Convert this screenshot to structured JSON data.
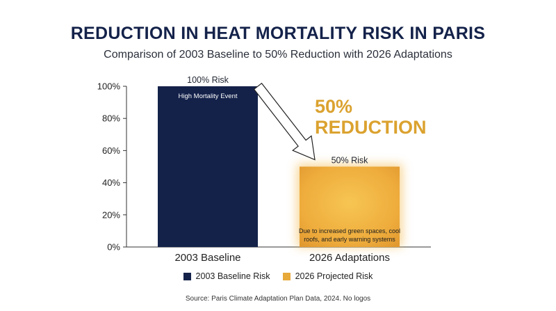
{
  "title": "REDUCTION IN HEAT MORTALITY RISK IN PARIS",
  "subtitle": "Comparison of 2003 Baseline to 50% Reduction with 2026 Adaptations",
  "chart_data": {
    "type": "bar",
    "categories": [
      "2003 Baseline",
      "2026 Adaptations"
    ],
    "values": [
      100,
      50
    ],
    "value_labels": [
      "100% Risk",
      "50% Risk"
    ],
    "bar_notes": [
      "High Mortality Event",
      "Due to increased green spaces, cool roofs, and early warning systems"
    ],
    "bar_notes_lines": [
      [
        "High Mortality Event"
      ],
      [
        "Due to increased green spaces, cool",
        "roofs, and early warning systems"
      ]
    ],
    "yticks": [
      "0%",
      "20%",
      "40%",
      "60%",
      "80%",
      "100%"
    ],
    "ylim": [
      0,
      100
    ],
    "annotation": [
      "50%",
      "REDUCTION"
    ],
    "legend_position": "bottom",
    "grid": false,
    "colors": [
      "#14224a",
      "#f0b03f"
    ],
    "annotation_color": "#dba22f"
  },
  "legend": [
    {
      "label": "2003 Baseline Risk",
      "color": "#14224a"
    },
    {
      "label": "2026 Projected Risk",
      "color": "#e7a93a"
    }
  ],
  "source": "Source: Paris Climate Adaptation Plan Data, 2024. No logos"
}
